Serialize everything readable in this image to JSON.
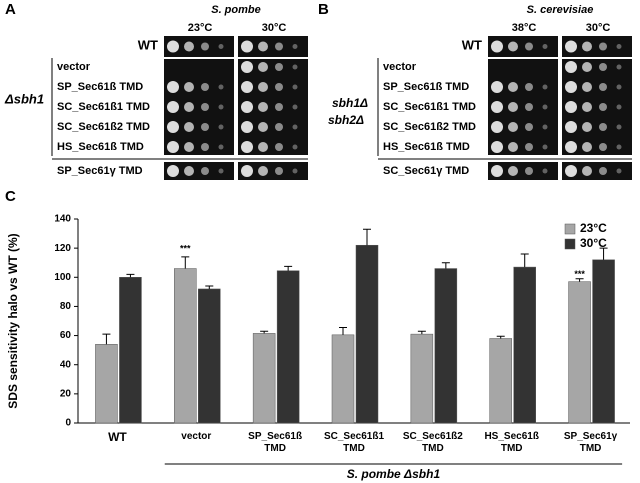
{
  "panel_a": {
    "letter": "A",
    "species": "S. pombe",
    "temps": [
      "23°C",
      "30°C"
    ],
    "wt": "WT",
    "rows": [
      "vector",
      "SP_Sec61ß TMD",
      "SC_Sec61ß1 TMD",
      "SC_Sec61ß2 TMD",
      "HS_Sec61ß TMD"
    ],
    "extra_row": "SP_Sec61γ TMD",
    "strain": "Δsbh1"
  },
  "panel_b": {
    "letter": "B",
    "species": "S. cerevisiae",
    "temps": [
      "38°C",
      "30°C"
    ],
    "wt": "WT",
    "rows": [
      "vector",
      "SP_Sec61ß TMD",
      "SC_Sec61ß1 TMD",
      "SC_Sec61ß2 TMD",
      "HS_Sec61ß TMD"
    ],
    "extra_row": "SC_Sec61γ TMD",
    "strain": [
      "sbh1Δ",
      "sbh2Δ"
    ]
  },
  "chart_data": {
    "type": "bar",
    "letter": "C",
    "ylabel": "SDS sensitivity halo vs WT (%)",
    "categories": [
      "WT",
      "vector",
      "SP_Sec61ß TMD",
      "SC_Sec61ß1 TMD",
      "SC_Sec61ß2 TMD",
      "HS_Sec61ß TMD",
      "SP_Sec61γ TMD"
    ],
    "series": [
      {
        "name": "23°C",
        "color": "#a6a6a6",
        "values": [
          54,
          106,
          61.5,
          60.5,
          61,
          58,
          97
        ],
        "errors": [
          7,
          8,
          1.5,
          5,
          2,
          1.5,
          2
        ]
      },
      {
        "name": "30°C",
        "color": "#333333",
        "values": [
          100,
          92,
          104.5,
          122,
          106,
          107,
          112
        ],
        "errors": [
          2,
          2,
          3,
          11,
          4,
          9,
          8
        ]
      }
    ],
    "ylim": [
      0,
      140
    ],
    "yticks": [
      0,
      20,
      40,
      60,
      80,
      100,
      120,
      140
    ],
    "annotations": [
      {
        "text": "***",
        "category": 1
      },
      {
        "text": "***",
        "category": 6
      }
    ],
    "group_label": "S. pombe Δsbh1",
    "legend": "upper right"
  }
}
